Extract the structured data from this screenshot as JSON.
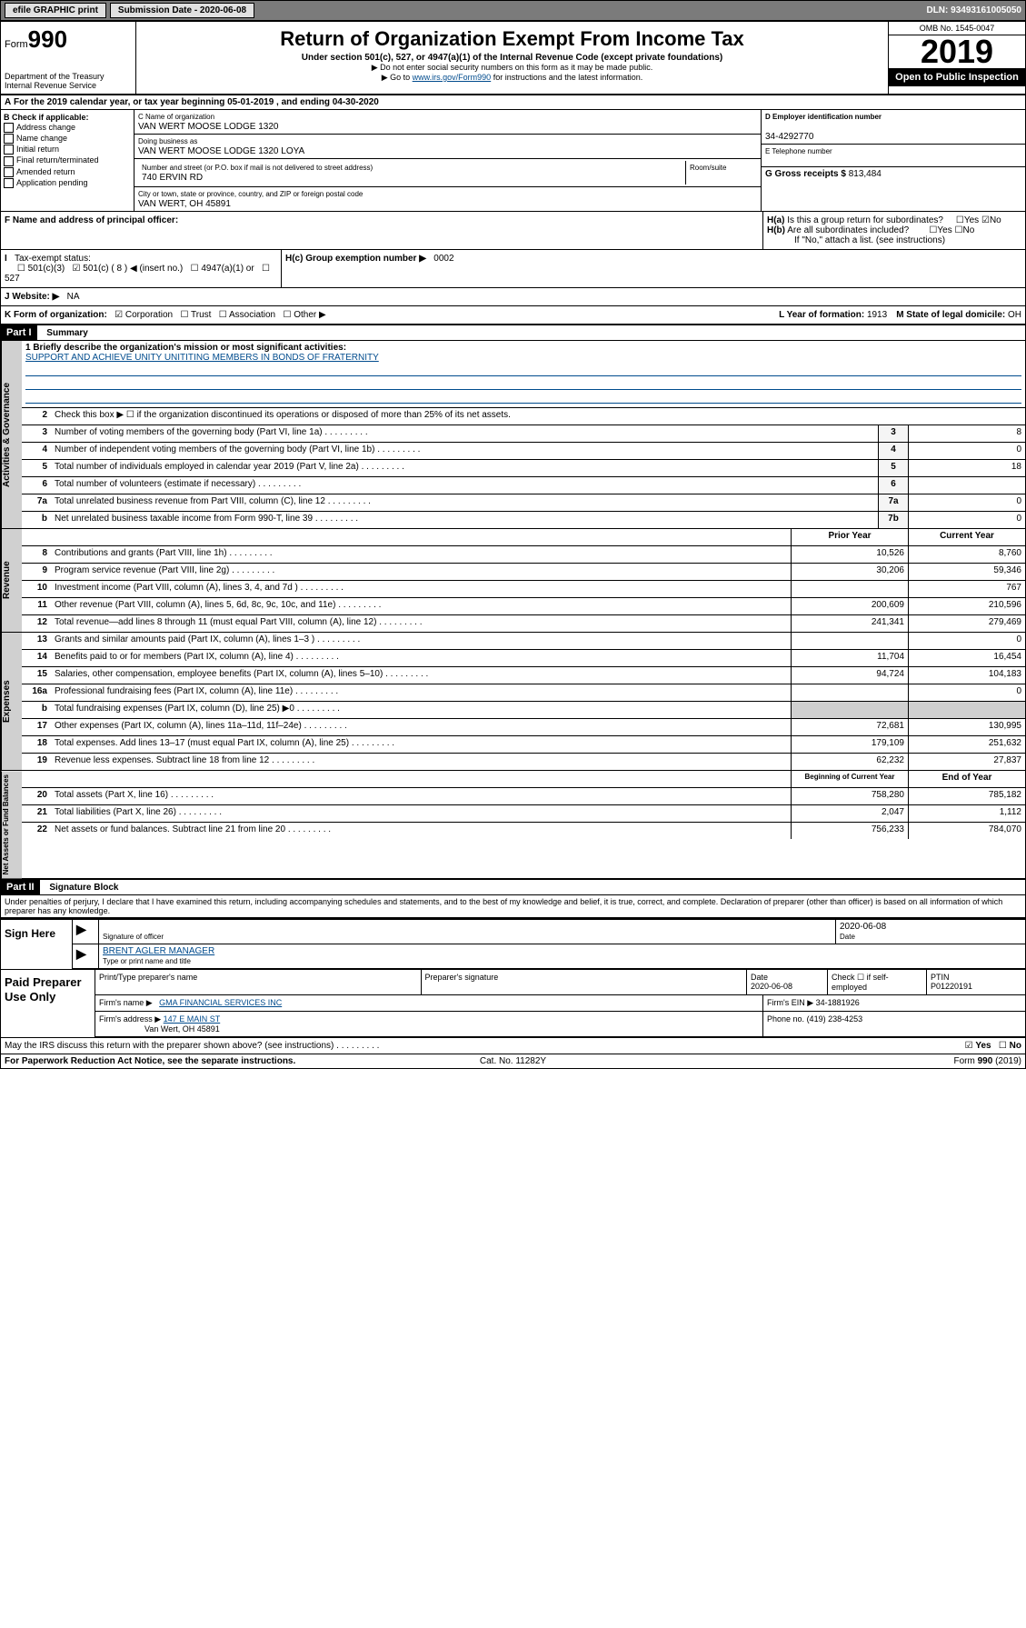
{
  "top": {
    "efile": "efile GRAPHIC print",
    "subdate_lbl": "Submission Date - 2020-06-08",
    "dln": "DLN: 93493161005050"
  },
  "hdr": {
    "form": "Form",
    "num": "990",
    "dept": "Department of the Treasury",
    "irs": "Internal Revenue Service",
    "title": "Return of Organization Exempt From Income Tax",
    "sub": "Under section 501(c), 527, or 4947(a)(1) of the Internal Revenue Code (except private foundations)",
    "note1": "▶ Do not enter social security numbers on this form as it may be made public.",
    "note2": "▶ Go to www.irs.gov/Form990 for instructions and the latest information.",
    "omb": "OMB No. 1545-0047",
    "year": "2019",
    "open": "Open to Public Inspection"
  },
  "a": {
    "line": "For the 2019 calendar year, or tax year beginning 05-01-2019   , and ending 04-30-2020"
  },
  "b": {
    "lbl": "B Check if applicable:",
    "opts": [
      "Address change",
      "Name change",
      "Initial return",
      "Final return/terminated",
      "Amended return",
      "Application pending"
    ]
  },
  "c": {
    "name_lbl": "C Name of organization",
    "name": "VAN WERT MOOSE LODGE 1320",
    "dba_lbl": "Doing business as",
    "dba": "VAN WERT MOOSE LODGE 1320 LOYA",
    "addr_lbl": "Number and street (or P.O. box if mail is not delivered to street address)",
    "addr": "740 ERVIN RD",
    "room_lbl": "Room/suite",
    "city_lbl": "City or town, state or province, country, and ZIP or foreign postal code",
    "city": "VAN WERT, OH  45891"
  },
  "d": {
    "lbl": "D Employer identification number",
    "val": "34-4292770"
  },
  "e": {
    "lbl": "E Telephone number"
  },
  "f": {
    "lbl": "F  Name and address of principal officer:"
  },
  "g": {
    "lbl": "G Gross receipts $",
    "val": "813,484"
  },
  "h": {
    "a": "H(a)  Is this a group return for subordinates?",
    "b": "H(b)  Are all subordinates included?",
    "bn": "If \"No,\" attach a list. (see instructions)",
    "c": "H(c)  Group exemption number ▶",
    "cn": "0002",
    "yes": "Yes",
    "no": "No"
  },
  "i": {
    "lbl": "Tax-exempt status:",
    "o1": "501(c)(3)",
    "o2": "501(c) ( 8 ) ◀ (insert no.)",
    "o3": "4947(a)(1) or",
    "o4": "527"
  },
  "j": {
    "lbl": "J   Website: ▶",
    "val": "NA"
  },
  "k": {
    "lbl": "K Form of organization:",
    "o1": "Corporation",
    "o2": "Trust",
    "o3": "Association",
    "o4": "Other ▶"
  },
  "l": {
    "lbl": "L Year of formation:",
    "val": "1913"
  },
  "m": {
    "lbl": "M State of legal domicile:",
    "val": "OH"
  },
  "p1": {
    "hdr": "Part I",
    "title": "Summary",
    "l1": "1  Briefly describe the organization's mission or most significant activities:",
    "l1v": "SUPPORT AND ACHIEVE UNITY UNITITING MEMBERS IN BONDS OF FRATERNITY",
    "l2": "Check this box ▶ ☐  if the organization discontinued its operations or disposed of more than 25% of its net assets.",
    "lines": [
      {
        "n": "3",
        "t": "Number of voting members of the governing body (Part VI, line 1a)",
        "b": "3",
        "v": "8"
      },
      {
        "n": "4",
        "t": "Number of independent voting members of the governing body (Part VI, line 1b)",
        "b": "4",
        "v": "0"
      },
      {
        "n": "5",
        "t": "Total number of individuals employed in calendar year 2019 (Part V, line 2a)",
        "b": "5",
        "v": "18"
      },
      {
        "n": "6",
        "t": "Total number of volunteers (estimate if necessary)",
        "b": "6",
        "v": ""
      },
      {
        "n": "7a",
        "t": "Total unrelated business revenue from Part VIII, column (C), line 12",
        "b": "7a",
        "v": "0"
      },
      {
        "n": "b",
        "t": "Net unrelated business taxable income from Form 990-T, line 39",
        "b": "7b",
        "v": "0"
      }
    ],
    "colh": {
      "py": "Prior Year",
      "cy": "Current Year"
    },
    "rev": [
      {
        "n": "8",
        "t": "Contributions and grants (Part VIII, line 1h)",
        "p": "10,526",
        "c": "8,760"
      },
      {
        "n": "9",
        "t": "Program service revenue (Part VIII, line 2g)",
        "p": "30,206",
        "c": "59,346"
      },
      {
        "n": "10",
        "t": "Investment income (Part VIII, column (A), lines 3, 4, and 7d )",
        "p": "",
        "c": "767"
      },
      {
        "n": "11",
        "t": "Other revenue (Part VIII, column (A), lines 5, 6d, 8c, 9c, 10c, and 11e)",
        "p": "200,609",
        "c": "210,596"
      },
      {
        "n": "12",
        "t": "Total revenue—add lines 8 through 11 (must equal Part VIII, column (A), line 12)",
        "p": "241,341",
        "c": "279,469"
      }
    ],
    "exp": [
      {
        "n": "13",
        "t": "Grants and similar amounts paid (Part IX, column (A), lines 1–3 )",
        "p": "",
        "c": "0"
      },
      {
        "n": "14",
        "t": "Benefits paid to or for members (Part IX, column (A), line 4)",
        "p": "11,704",
        "c": "16,454"
      },
      {
        "n": "15",
        "t": "Salaries, other compensation, employee benefits (Part IX, column (A), lines 5–10)",
        "p": "94,724",
        "c": "104,183"
      },
      {
        "n": "16a",
        "t": "Professional fundraising fees (Part IX, column (A), line 11e)",
        "p": "",
        "c": "0"
      },
      {
        "n": "b",
        "t": "Total fundraising expenses (Part IX, column (D), line 25) ▶0",
        "p": "",
        "c": "",
        "nb": true
      },
      {
        "n": "17",
        "t": "Other expenses (Part IX, column (A), lines 11a–11d, 11f–24e)",
        "p": "72,681",
        "c": "130,995"
      },
      {
        "n": "18",
        "t": "Total expenses. Add lines 13–17 (must equal Part IX, column (A), line 25)",
        "p": "179,109",
        "c": "251,632"
      },
      {
        "n": "19",
        "t": "Revenue less expenses. Subtract line 18 from line 12",
        "p": "62,232",
        "c": "27,837"
      }
    ],
    "colh2": {
      "b": "Beginning of Current Year",
      "e": "End of Year"
    },
    "na": [
      {
        "n": "20",
        "t": "Total assets (Part X, line 16)",
        "p": "758,280",
        "c": "785,182"
      },
      {
        "n": "21",
        "t": "Total liabilities (Part X, line 26)",
        "p": "2,047",
        "c": "1,112"
      },
      {
        "n": "22",
        "t": "Net assets or fund balances. Subtract line 21 from line 20",
        "p": "756,233",
        "c": "784,070"
      }
    ],
    "side": {
      "ag": "Activities & Governance",
      "rev": "Revenue",
      "exp": "Expenses",
      "na": "Net Assets or Fund Balances"
    }
  },
  "p2": {
    "hdr": "Part II",
    "title": "Signature Block",
    "decl": "Under penalties of perjury, I declare that I have examined this return, including accompanying schedules and statements, and to the best of my knowledge and belief, it is true, correct, and complete. Declaration of preparer (other than officer) is based on all information of which preparer has any knowledge.",
    "sign": "Sign Here",
    "sig_lbl": "Signature of officer",
    "date": "2020-06-08",
    "date_lbl": "Date",
    "name": "BRENT AGLER MANAGER",
    "name_lbl": "Type or print name and title"
  },
  "prep": {
    "lbl": "Paid Preparer Use Only",
    "pname_lbl": "Print/Type preparer's name",
    "psig_lbl": "Preparer's signature",
    "pdate_lbl": "Date",
    "pdate": "2020-06-08",
    "check_lbl": "Check ☐ if self-employed",
    "ptin_lbl": "PTIN",
    "ptin": "P01220191",
    "firm_lbl": "Firm's name   ▶",
    "firm": "GMA FINANCIAL SERVICES INC",
    "ein_lbl": "Firm's EIN ▶",
    "ein": "34-1881926",
    "addr_lbl": "Firm's address ▶",
    "addr": "147 E MAIN ST",
    "addr2": "Van Wert, OH  45891",
    "phone_lbl": "Phone no.",
    "phone": "(419) 238-4253"
  },
  "discuss": "May the IRS discuss this return with the preparer shown above? (see instructions)",
  "foot": {
    "l": "For Paperwork Reduction Act Notice, see the separate instructions.",
    "c": "Cat. No. 11282Y",
    "r": "Form 990 (2019)"
  }
}
